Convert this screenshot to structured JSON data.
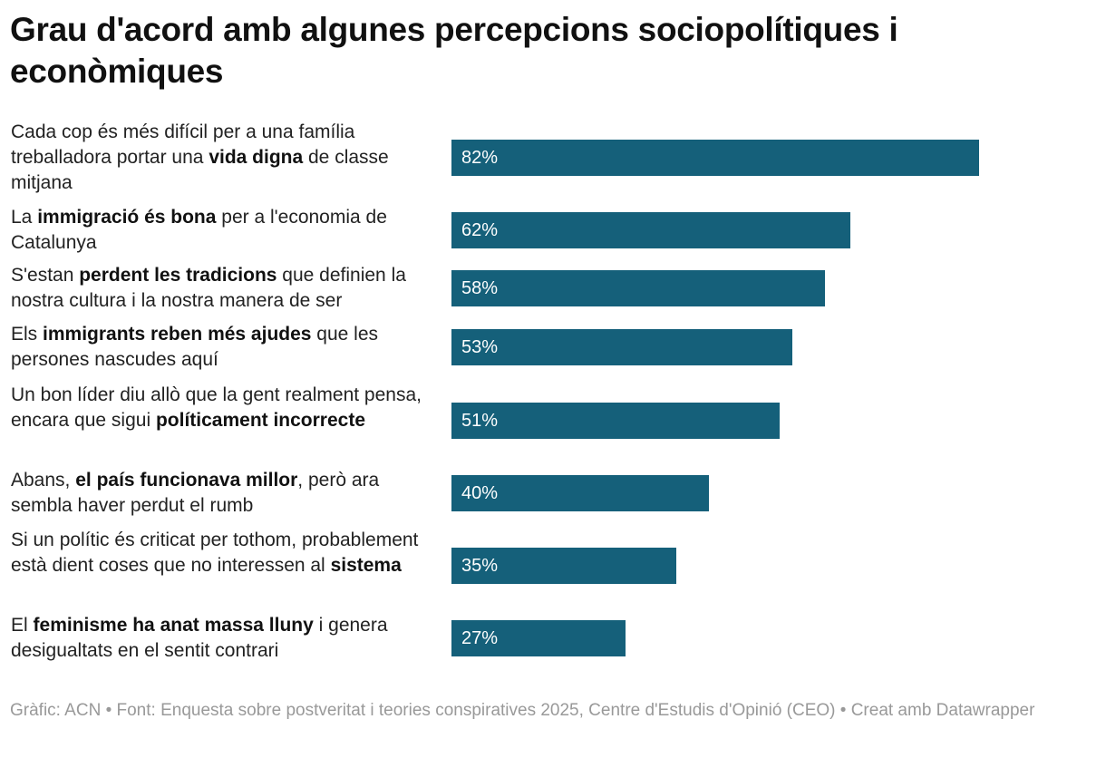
{
  "chart_data": {
    "type": "bar",
    "orientation": "horizontal",
    "title": "Grau d'acord amb algunes percepcions sociopolítiques i econòmiques",
    "bar_color": "#15607a",
    "value_suffix": "%",
    "xlim": [
      0,
      100
    ],
    "grid": false,
    "categories": [
      [
        {
          "t": "Cada cop és més difícil per a una família treballadora portar una "
        },
        {
          "t": "vida digna",
          "b": true
        },
        {
          "t": " de classe mitjana"
        }
      ],
      [
        {
          "t": "La "
        },
        {
          "t": "immigració és bona",
          "b": true
        },
        {
          "t": " per a l'economia de Catalunya"
        }
      ],
      [
        {
          "t": "S'estan "
        },
        {
          "t": "perdent les tradicions",
          "b": true
        },
        {
          "t": " que definien la nostra cultura i la nostra manera de ser"
        }
      ],
      [
        {
          "t": "Els "
        },
        {
          "t": "immigrants reben més ajudes",
          "b": true
        },
        {
          "t": " que les persones nascudes aquí"
        }
      ],
      [
        {
          "t": "Un bon líder diu allò que la gent realment pensa, encara que sigui "
        },
        {
          "t": "políticament incorrecte",
          "b": true
        }
      ],
      [
        {
          "t": "Abans, "
        },
        {
          "t": "el país funcionava millor",
          "b": true
        },
        {
          "t": ", però ara sembla haver perdut el rumb"
        }
      ],
      [
        {
          "t": "Si un polític és criticat per tothom, probablement està dient coses que no interessen al "
        },
        {
          "t": "sistema",
          "b": true
        }
      ],
      [
        {
          "t": "El "
        },
        {
          "t": "feminisme ha anat massa lluny",
          "b": true
        },
        {
          "t": " i genera desigualtats en el sentit contrari"
        }
      ]
    ],
    "values": [
      82,
      62,
      58,
      53,
      51,
      40,
      35,
      27
    ],
    "value_labels": [
      "82%",
      "62%",
      "58%",
      "53%",
      "51%",
      "40%",
      "35%",
      "27%"
    ]
  },
  "footer": "Gràfic: ACN • Font: Enquesta sobre postveritat i teories conspiratives 2025, Centre d'Estudis d'Opinió (CEO) • Creat amb Datawrapper"
}
